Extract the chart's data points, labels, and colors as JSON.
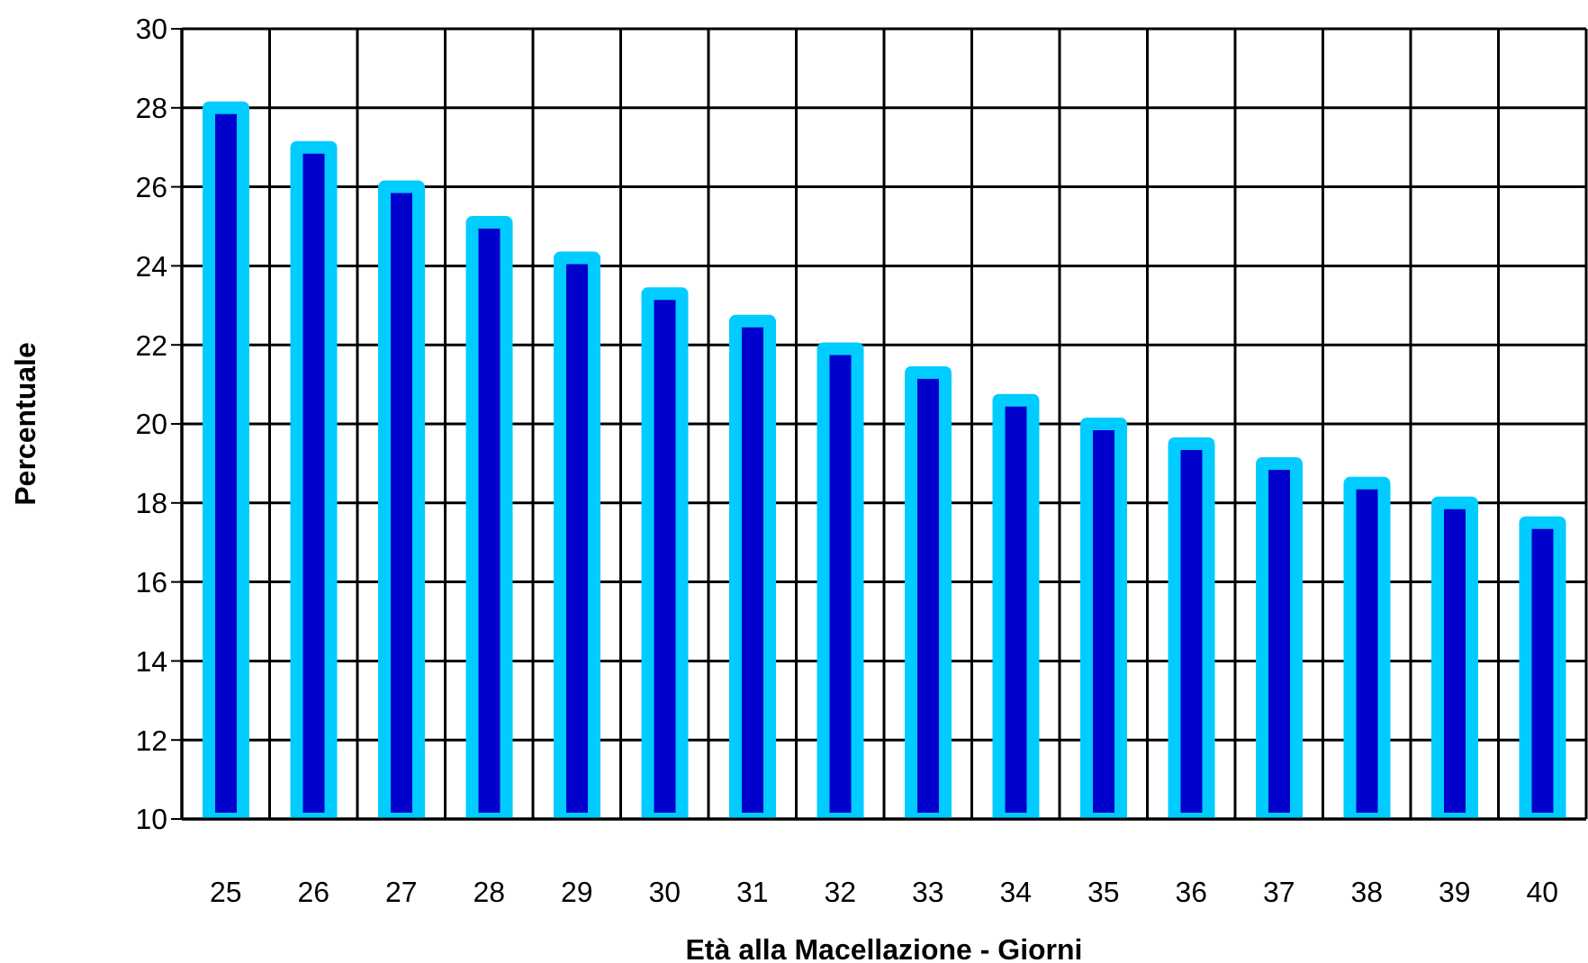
{
  "chart_data": {
    "type": "bar",
    "xlabel": "Età alla Macellazione - Giorni",
    "ylabel": "Percentuale",
    "categories": [
      "25",
      "26",
      "27",
      "28",
      "29",
      "30",
      "31",
      "32",
      "33",
      "34",
      "35",
      "36",
      "37",
      "38",
      "39",
      "40"
    ],
    "series": [
      {
        "color": "#0000cc",
        "values": [
          28.0,
          27.0,
          26.0,
          25.1,
          24.2,
          23.3,
          22.6,
          21.9,
          21.3,
          20.6,
          20.0,
          19.5,
          19.0,
          18.5,
          18.0,
          17.5
        ]
      }
    ],
    "ylim": [
      10,
      30
    ],
    "yticks": [
      10,
      12,
      14,
      16,
      18,
      20,
      22,
      24,
      26,
      28,
      30
    ],
    "grid": true,
    "legend": false
  }
}
